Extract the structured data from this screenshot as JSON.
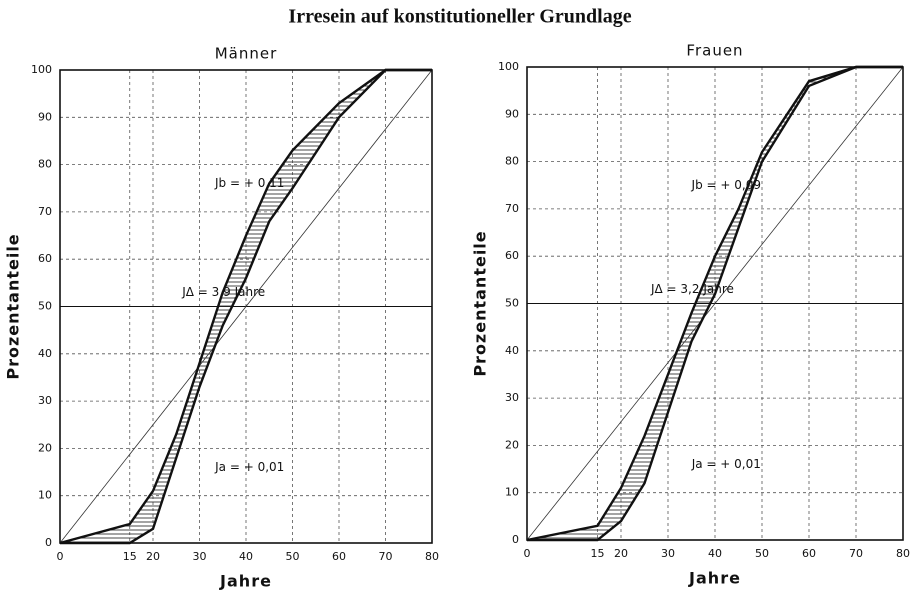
{
  "title": "Irresein auf konstitutioneller Grundlage",
  "chart_data": [
    {
      "type": "line",
      "title": "Männer",
      "x_label": "Jahre",
      "y_label": "Prozentanteile",
      "x": [
        0,
        15,
        20,
        25,
        30,
        35,
        40,
        45,
        50,
        60,
        70,
        80
      ],
      "series": [
        {
          "color": "#111111",
          "values": [
            0,
            4,
            11,
            23,
            38,
            53,
            65,
            76,
            83,
            93,
            100,
            100
          ]
        },
        {
          "color": "#111111",
          "values": [
            0,
            0,
            3,
            18,
            33,
            46,
            56,
            68,
            75,
            90,
            100,
            100
          ]
        }
      ],
      "xlim": [
        0,
        80
      ],
      "ylim": [
        0,
        100
      ],
      "xticks": [
        0,
        15,
        20,
        30,
        40,
        50,
        60,
        70,
        80
      ],
      "yticks": [
        0,
        10,
        20,
        30,
        40,
        50,
        60,
        70,
        80,
        90,
        100
      ],
      "grid": true,
      "annotations": [
        "Jb = + 0,11",
        "JΔ = 3,9 Jahre",
        "Ja = + 0,01"
      ]
    },
    {
      "type": "line",
      "title": "Frauen",
      "x_label": "Jahre",
      "y_label": "Prozentanteile",
      "x": [
        0,
        15,
        20,
        25,
        30,
        35,
        40,
        45,
        50,
        60,
        70,
        80
      ],
      "series": [
        {
          "color": "#111111",
          "values": [
            0,
            3,
            11,
            22,
            35,
            48,
            60,
            70,
            82,
            97,
            100,
            100
          ]
        },
        {
          "color": "#111111",
          "values": [
            0,
            0,
            4,
            12,
            27,
            42,
            52,
            66,
            80,
            96,
            100,
            100
          ]
        }
      ],
      "xlim": [
        0,
        80
      ],
      "ylim": [
        0,
        100
      ],
      "xticks": [
        0,
        15,
        20,
        30,
        40,
        50,
        60,
        70,
        80
      ],
      "yticks": [
        0,
        10,
        20,
        30,
        40,
        50,
        60,
        70,
        80,
        90,
        100
      ],
      "grid": true,
      "annotations": [
        "Jb = + 0,09",
        "JΔ = 3,2 Jahre",
        "Ja = + 0,01"
      ]
    }
  ]
}
